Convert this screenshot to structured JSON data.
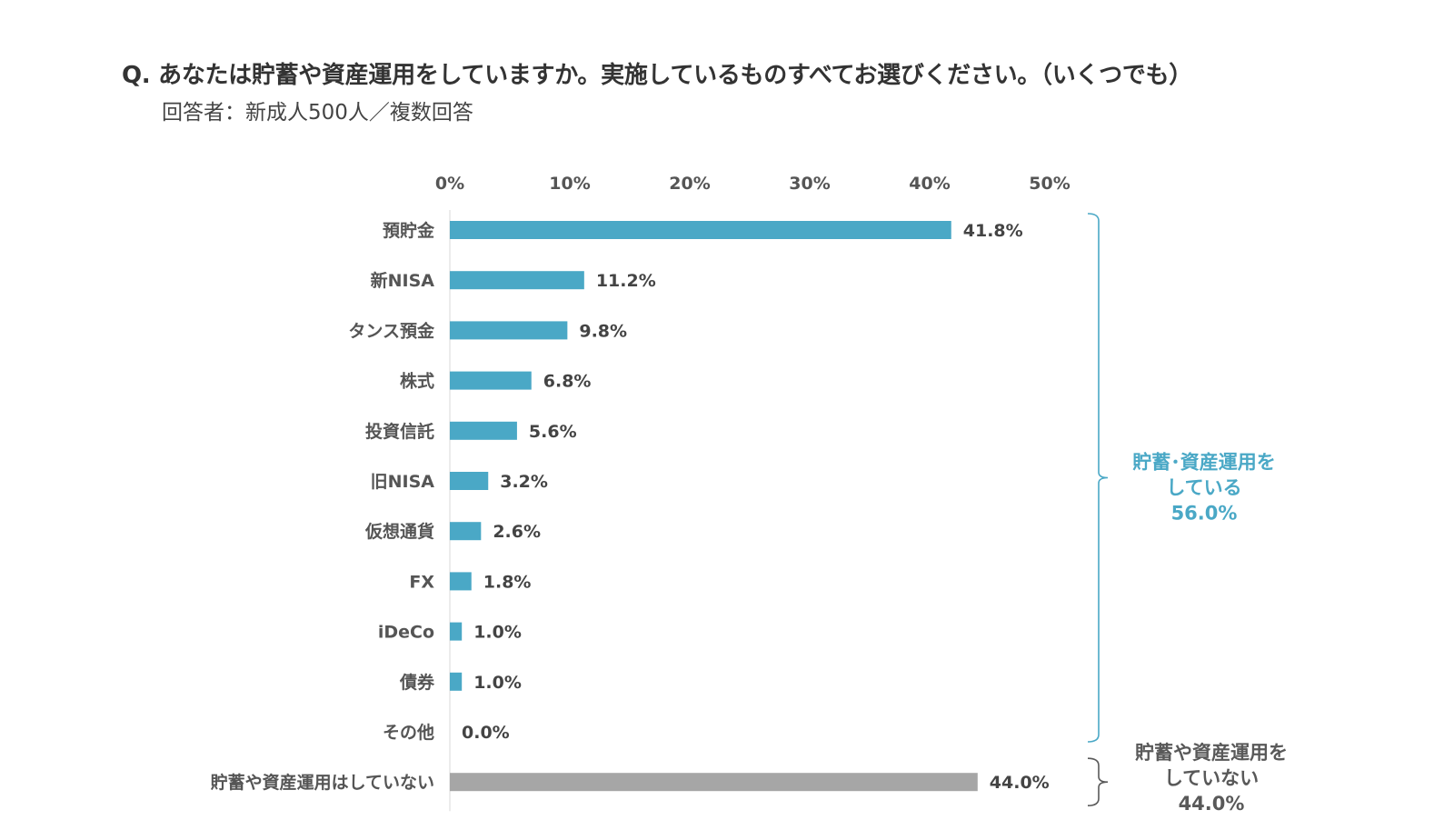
{
  "question": {
    "title": "Q. あなたは貯蓄や資産運用をしていますか。実施しているものすべてお選びください。（いくつでも）",
    "subtitle": "回答者：新成人500人／複数回答"
  },
  "colors": {
    "bar": "#4aa8c6",
    "bar_none": "#a6a6a6",
    "group_yes": "#4aa8c6",
    "group_no": "#595959"
  },
  "chart_data": {
    "type": "bar",
    "orientation": "horizontal",
    "xlim": [
      0,
      50
    ],
    "ticks": [
      "0%",
      "10%",
      "20%",
      "30%",
      "40%",
      "50%"
    ],
    "tick_values": [
      0,
      10,
      20,
      30,
      40,
      50
    ],
    "categories": [
      "預貯金",
      "新NISA",
      "タンス預金",
      "株式",
      "投資信託",
      "旧NISA",
      "仮想通貨",
      "FX",
      "iDeCo",
      "債券",
      "その他",
      "貯蓄や資産運用はしていない"
    ],
    "values": [
      41.8,
      11.2,
      9.8,
      6.8,
      5.6,
      3.2,
      2.6,
      1.8,
      1.0,
      1.0,
      0.0,
      44.0
    ],
    "value_labels": [
      "41.8%",
      "11.2%",
      "9.8%",
      "6.8%",
      "5.6%",
      "3.2%",
      "2.6%",
      "1.8%",
      "1.0%",
      "1.0%",
      "0.0%",
      "44.0%"
    ],
    "groups": [
      {
        "name": "yes",
        "lines": [
          "貯蓄･資産運用を",
          "している",
          "56.0%"
        ],
        "from": 0,
        "to": 10
      },
      {
        "name": "no",
        "lines": [
          "貯蓄や資産運用を",
          "していない",
          "44.0%"
        ],
        "from": 11,
        "to": 11
      }
    ]
  }
}
